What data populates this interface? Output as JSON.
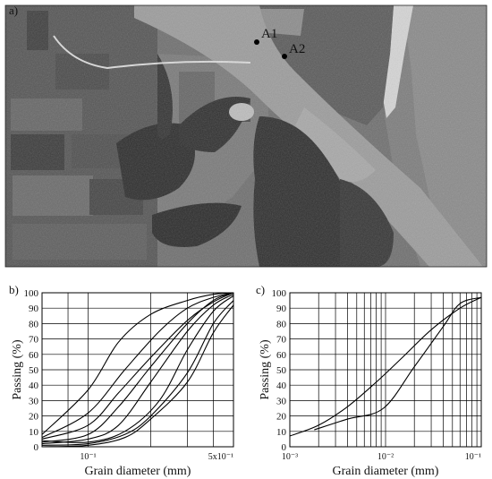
{
  "panels": {
    "a": {
      "label": "a)",
      "markers": [
        {
          "name": "A1"
        },
        {
          "name": "A2"
        }
      ]
    },
    "b": {
      "label": "b)"
    },
    "c": {
      "label": "c)"
    }
  },
  "chart_data": [
    {
      "type": "line",
      "panel": "b",
      "ylabel": "Passing (%)",
      "xlabel": "Grain diameter (mm)",
      "x_scale": "log",
      "xlim": [
        0.06,
        0.5
      ],
      "ylim": [
        0,
        100
      ],
      "x_tick_labels": [
        {
          "value": 0.1,
          "label": "10⁻¹"
        },
        {
          "value": 0.5,
          "label": "5x10⁻¹"
        }
      ],
      "y_ticks": [
        0,
        10,
        20,
        30,
        40,
        50,
        60,
        70,
        80,
        90,
        100
      ],
      "grid": true,
      "series": [
        {
          "x": [
            0.06,
            0.1,
            0.14,
            0.2,
            0.3,
            0.4,
            0.5
          ],
          "y": [
            8,
            37,
            68,
            86,
            95,
            99,
            100
          ]
        },
        {
          "x": [
            0.06,
            0.1,
            0.15,
            0.22,
            0.3,
            0.4,
            0.5
          ],
          "y": [
            6,
            22,
            50,
            75,
            90,
            97,
            100
          ]
        },
        {
          "x": [
            0.06,
            0.1,
            0.14,
            0.2,
            0.3,
            0.4,
            0.5
          ],
          "y": [
            5,
            14,
            35,
            58,
            82,
            94,
            100
          ]
        },
        {
          "x": [
            0.06,
            0.1,
            0.14,
            0.2,
            0.3,
            0.4,
            0.5
          ],
          "y": [
            3,
            8,
            26,
            52,
            80,
            95,
            100
          ]
        },
        {
          "x": [
            0.06,
            0.1,
            0.14,
            0.2,
            0.3,
            0.4,
            0.5
          ],
          "y": [
            2,
            5,
            14,
            42,
            75,
            92,
            99
          ]
        },
        {
          "x": [
            0.06,
            0.1,
            0.15,
            0.22,
            0.3,
            0.4,
            0.5
          ],
          "y": [
            4,
            3,
            10,
            30,
            63,
            88,
            98
          ]
        },
        {
          "x": [
            0.06,
            0.1,
            0.15,
            0.2,
            0.3,
            0.4,
            0.5
          ],
          "y": [
            1,
            2,
            8,
            20,
            48,
            80,
            95
          ]
        },
        {
          "x": [
            0.06,
            0.1,
            0.15,
            0.2,
            0.3,
            0.4,
            0.5
          ],
          "y": [
            0,
            1,
            6,
            18,
            42,
            74,
            92
          ]
        }
      ]
    },
    {
      "type": "line",
      "panel": "c",
      "ylabel": "Passing (%)",
      "xlabel": "Grain diameter (mm)",
      "x_scale": "log",
      "xlim": [
        0.001,
        0.1
      ],
      "ylim": [
        0,
        100
      ],
      "x_tick_labels": [
        {
          "value": 0.001,
          "label": "10⁻³"
        },
        {
          "value": 0.01,
          "label": "10⁻²"
        },
        {
          "value": 0.1,
          "label": "10⁻¹"
        }
      ],
      "y_ticks": [
        0,
        10,
        20,
        30,
        40,
        50,
        60,
        70,
        80,
        90,
        100
      ],
      "grid": true,
      "series": [
        {
          "x": [
            0.001,
            0.002,
            0.004,
            0.008,
            0.015,
            0.03,
            0.06,
            0.1
          ],
          "y": [
            7,
            14,
            26,
            42,
            58,
            76,
            90,
            97
          ]
        },
        {
          "x": [
            0.0018,
            0.004,
            0.0095,
            0.02,
            0.04,
            0.06,
            0.1
          ],
          "y": [
            11,
            18,
            25,
            52,
            78,
            93,
            97
          ]
        }
      ]
    }
  ]
}
